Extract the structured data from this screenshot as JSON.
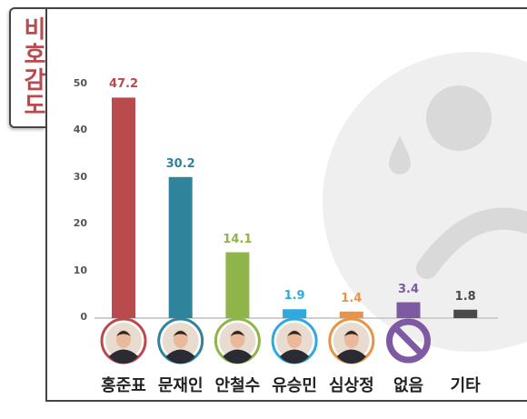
{
  "title": "비호감도",
  "chart_data": {
    "type": "bar",
    "categories": [
      "홍준표",
      "문재인",
      "안철수",
      "유승민",
      "심상정",
      "없음",
      "기타"
    ],
    "values": [
      47.2,
      30.2,
      14.1,
      1.9,
      1.4,
      3.4,
      1.8
    ],
    "value_labels": [
      "47.2",
      "30.2",
      "14.1",
      "1.9",
      "1.4",
      "3.4",
      "1.8"
    ],
    "colors": [
      "#b94a4d",
      "#2f849c",
      "#8fb54a",
      "#2fa9de",
      "#e89446",
      "#7e5aa2",
      "#4a4a4a"
    ],
    "yticks": [
      "0",
      "10",
      "20",
      "30",
      "40",
      "50"
    ],
    "ylim": [
      0,
      50
    ],
    "grid": false,
    "legend": "none",
    "icons": [
      "avatar-hong",
      "avatar-moon",
      "avatar-ahn",
      "avatar-yoo",
      "avatar-sim",
      "prohibited-icon",
      "none"
    ]
  }
}
